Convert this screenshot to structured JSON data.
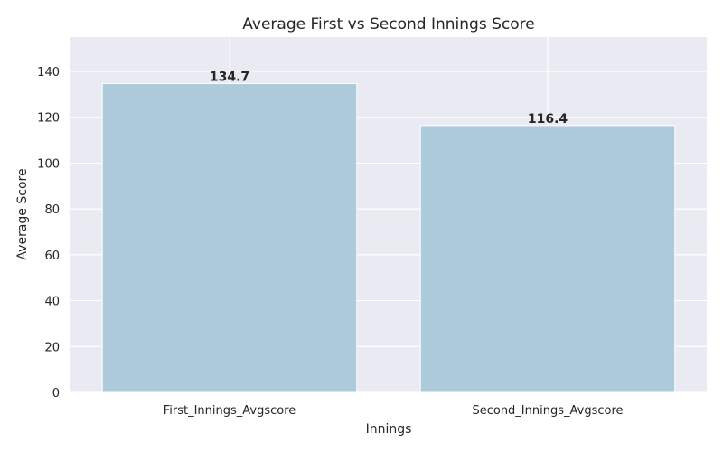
{
  "chart_data": {
    "type": "bar",
    "title": "Average First vs Second Innings Score",
    "xlabel": "Innings",
    "ylabel": "Average Score",
    "categories": [
      "First_Innings_Avgscore",
      "Second_Innings_Avgscore"
    ],
    "values": [
      134.7,
      116.4
    ],
    "data_labels": [
      "134.7",
      "116.4"
    ],
    "ylim": [
      0,
      155
    ],
    "yticks": [
      0,
      20,
      40,
      60,
      80,
      100,
      120,
      140
    ],
    "grid": true,
    "bar_color": "#aecbdc",
    "background_color": "#eaeaf2",
    "grid_color": "#ffffff"
  }
}
